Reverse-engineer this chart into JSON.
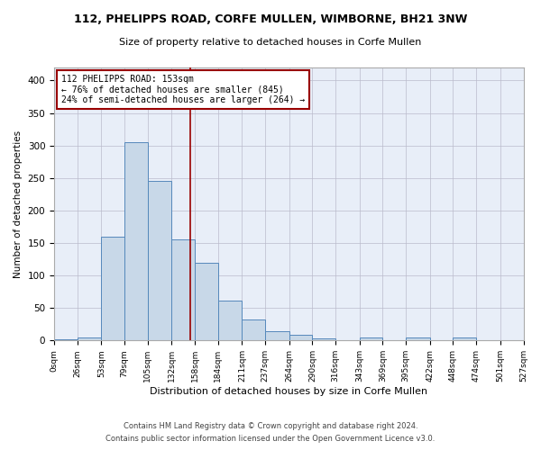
{
  "title": "112, PHELIPPS ROAD, CORFE MULLEN, WIMBORNE, BH21 3NW",
  "subtitle": "Size of property relative to detached houses in Corfe Mullen",
  "xlabel": "Distribution of detached houses by size in Corfe Mullen",
  "ylabel": "Number of detached properties",
  "footnote1": "Contains HM Land Registry data © Crown copyright and database right 2024.",
  "footnote2": "Contains public sector information licensed under the Open Government Licence v3.0.",
  "bar_color": "#c8d8e8",
  "bar_edge_color": "#5588bb",
  "grid_color": "#bbbbcc",
  "bg_color": "#e8eef8",
  "vline_x": 153,
  "vline_color": "#990000",
  "annotation_text": "112 PHELIPPS ROAD: 153sqm\n← 76% of detached houses are smaller (845)\n24% of semi-detached houses are larger (264) →",
  "annotation_box_color": "#990000",
  "bin_edges": [
    0,
    26,
    53,
    79,
    105,
    132,
    158,
    184,
    211,
    237,
    264,
    290,
    316,
    343,
    369,
    395,
    422,
    448,
    474,
    501,
    527
  ],
  "bin_counts": [
    2,
    5,
    160,
    305,
    245,
    155,
    120,
    62,
    32,
    15,
    9,
    3,
    0,
    4,
    0,
    4,
    0,
    4,
    0,
    1
  ],
  "ylim": [
    0,
    420
  ],
  "xlim": [
    0,
    527
  ],
  "yticks": [
    0,
    50,
    100,
    150,
    200,
    250,
    300,
    350,
    400
  ]
}
